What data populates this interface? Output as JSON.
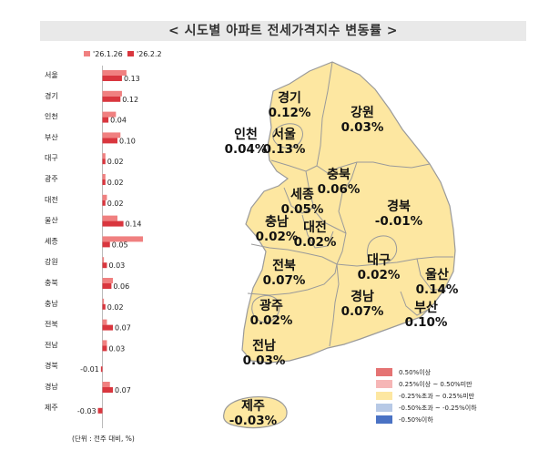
{
  "title": "< 시도별 아파트 전세가격지수 변동률 >",
  "unit_note": "(단위 : 전주 대비, %)",
  "colors": {
    "prev": "#f08080",
    "curr": "#d9363e",
    "map_fill": "#fde7a1",
    "map_stroke": "#9a9a9a",
    "bg_band": "#e9e9e9"
  },
  "chart_data": {
    "type": "bar",
    "orientation": "horizontal",
    "categories": [
      "서울",
      "경기",
      "인천",
      "부산",
      "대구",
      "광주",
      "대전",
      "울산",
      "세종",
      "강원",
      "충북",
      "충남",
      "전북",
      "전남",
      "경북",
      "경남",
      "제주"
    ],
    "series": [
      {
        "name": "'26.1.26",
        "values": [
          0.16,
          0.13,
          0.09,
          0.12,
          0.02,
          0.02,
          0.03,
          0.1,
          0.27,
          0.01,
          0.07,
          0.01,
          0.03,
          0.03,
          0.0,
          0.05,
          0.0
        ]
      },
      {
        "name": "'26.2.2",
        "values": [
          0.13,
          0.12,
          0.04,
          0.1,
          0.02,
          0.02,
          0.02,
          0.14,
          0.05,
          0.03,
          0.06,
          0.02,
          0.07,
          0.03,
          -0.01,
          0.07,
          -0.03
        ]
      }
    ],
    "value_labels": [
      "0.13",
      "0.12",
      "0.04",
      "0.10",
      "0.02",
      "0.02",
      "0.02",
      "0.14",
      "0.05",
      "0.03",
      "0.06",
      "0.02",
      "0.07",
      "0.03",
      "-0.01",
      "0.07",
      "-0.03"
    ]
  },
  "map": {
    "regions": [
      {
        "name": "경기",
        "value": "0.12%"
      },
      {
        "name": "강원",
        "value": "0.03%"
      },
      {
        "name": "인천",
        "value": "0.04%"
      },
      {
        "name": "서울",
        "value": "0.13%"
      },
      {
        "name": "충북",
        "value": "0.06%"
      },
      {
        "name": "세종",
        "value": "0.05%"
      },
      {
        "name": "경북",
        "value": "-0.01%"
      },
      {
        "name": "충남",
        "value": "0.02%"
      },
      {
        "name": "대전",
        "value": "0.02%"
      },
      {
        "name": "대구",
        "value": "0.02%"
      },
      {
        "name": "울산",
        "value": "0.14%"
      },
      {
        "name": "전북",
        "value": "0.07%"
      },
      {
        "name": "경남",
        "value": "0.07%"
      },
      {
        "name": "부산",
        "value": "0.10%"
      },
      {
        "name": "광주",
        "value": "0.02%"
      },
      {
        "name": "전남",
        "value": "0.03%"
      },
      {
        "name": "제주",
        "value": "-0.03%"
      }
    ],
    "legend": [
      {
        "label": "0.50%이상",
        "color": "#e57373"
      },
      {
        "label": "0.25%이상 ~ 0.50%미만",
        "color": "#f6b6b6"
      },
      {
        "label": "-0.25%초과 ~ 0.25%미만",
        "color": "#fde7a1"
      },
      {
        "label": "-0.50%초과 ~ -0.25%이하",
        "color": "#b7c9e6"
      },
      {
        "label": "-0.50%이하",
        "color": "#4a72c4"
      }
    ]
  }
}
